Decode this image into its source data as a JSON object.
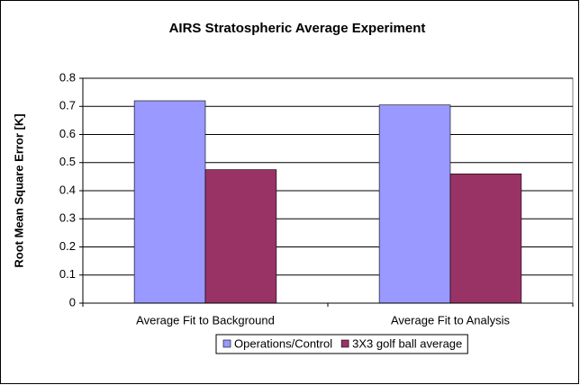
{
  "chart_data": {
    "type": "bar",
    "title": "AIRS Stratospheric Average Experiment",
    "y_label": "Root Mean Square Error [K]",
    "categories": [
      "Average Fit to Background",
      "Average Fit to Analysis"
    ],
    "series": [
      {
        "name": "Operations/Control",
        "color": "#9999ff",
        "values": [
          0.72,
          0.705
        ]
      },
      {
        "name": "3X3 golf ball average",
        "color": "#993366",
        "values": [
          0.475,
          0.46
        ]
      }
    ],
    "ylim": [
      0,
      0.8
    ],
    "yticks": [
      0,
      0.1,
      0.2,
      0.3,
      0.4,
      0.5,
      0.6,
      0.7,
      0.8
    ],
    "grid": true,
    "legend": "bottom"
  }
}
